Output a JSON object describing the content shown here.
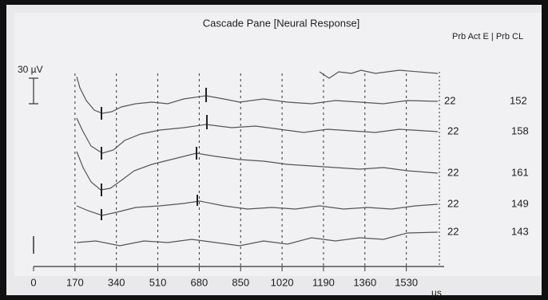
{
  "title": "Cascade Pane [Neural Response]",
  "header": "Prb Act E | Prb CL",
  "scale_label": "30 µV",
  "axis": {
    "ticks": [
      0,
      170,
      340,
      510,
      680,
      850,
      1020,
      1190,
      1360,
      1530
    ],
    "unit": "µs"
  },
  "rows": [
    {
      "electrode": 22,
      "cl": 152
    },
    {
      "electrode": 22,
      "cl": 158
    },
    {
      "electrode": 22,
      "cl": 161
    },
    {
      "electrode": 22,
      "cl": 149
    },
    {
      "electrode": 22,
      "cl": 143
    }
  ]
}
